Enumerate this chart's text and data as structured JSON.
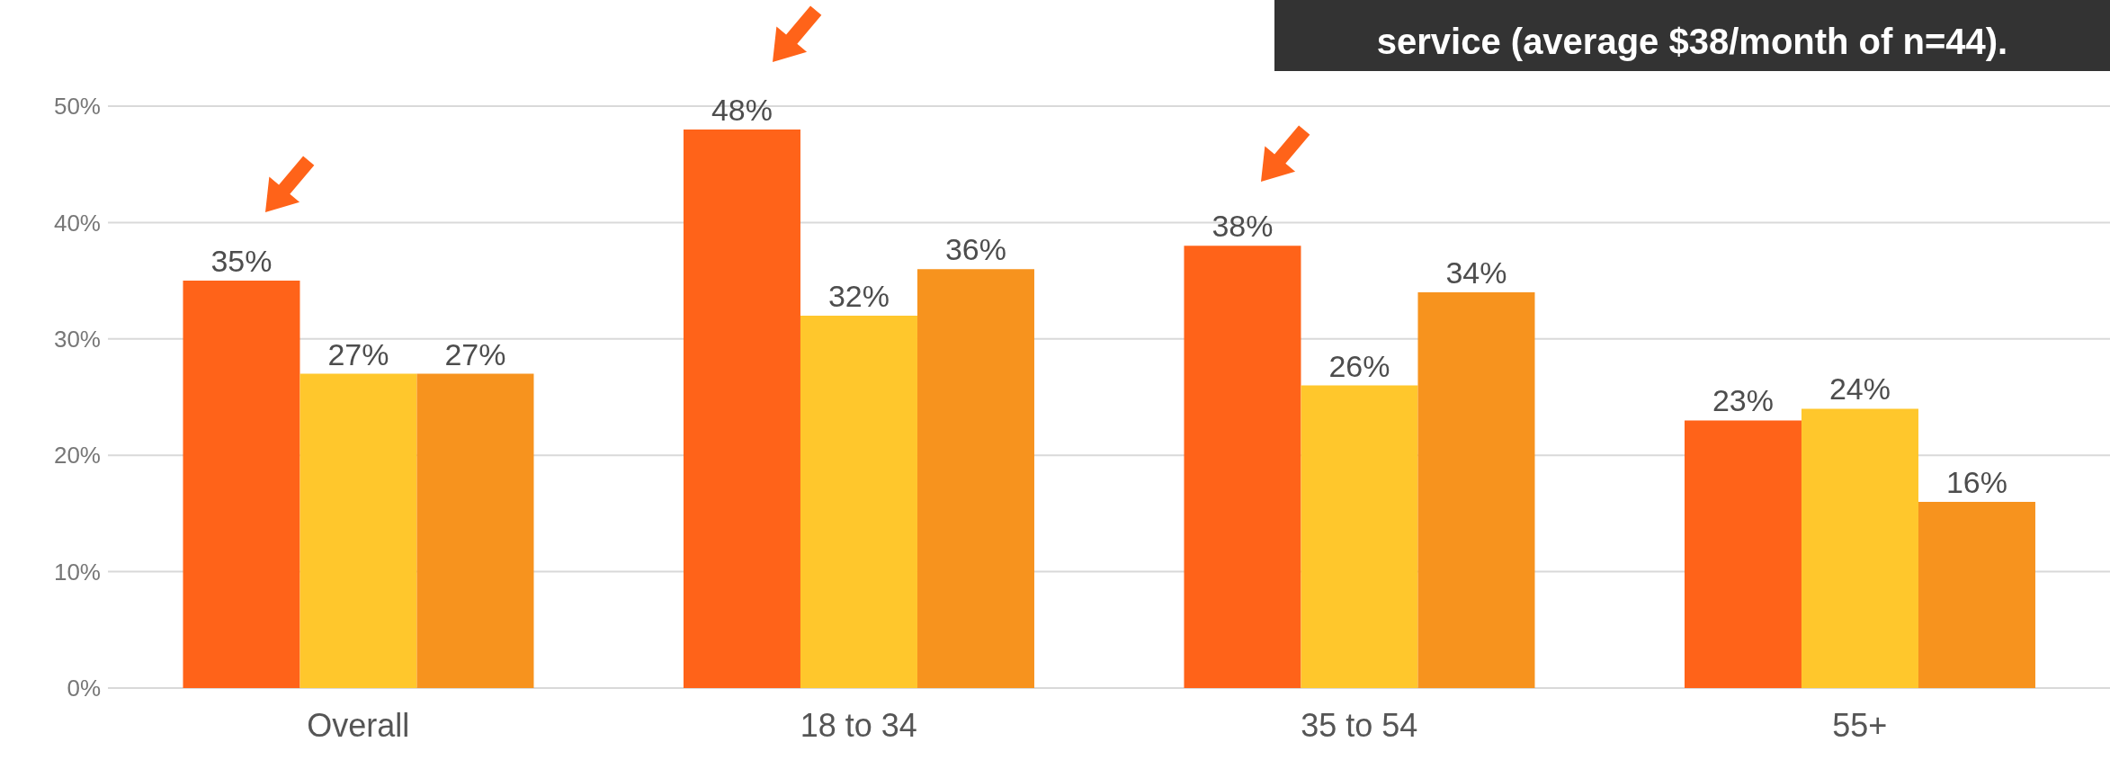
{
  "chart_data": {
    "type": "bar",
    "categories": [
      "Overall",
      "18 to 34",
      "35 to 54",
      "55+"
    ],
    "series": [
      {
        "color": "#ff6319",
        "values": [
          35,
          48,
          38,
          23
        ],
        "value_labels": [
          "35%",
          "48%",
          "38%",
          "23%"
        ]
      },
      {
        "color": "#ffc72c",
        "values": [
          27,
          32,
          26,
          24
        ],
        "value_labels": [
          "27%",
          "32%",
          "26%",
          "24%"
        ]
      },
      {
        "color": "#f7931e",
        "values": [
          27,
          36,
          34,
          16
        ],
        "value_labels": [
          "27%",
          "36%",
          "34%",
          "16%"
        ]
      }
    ],
    "ylim": [
      0,
      50
    ],
    "yticks": [
      {
        "value": 0,
        "label": "0%"
      },
      {
        "value": 10,
        "label": "10%"
      },
      {
        "value": 20,
        "label": "20%"
      },
      {
        "value": 30,
        "label": "30%"
      },
      {
        "value": 40,
        "label": "40%"
      },
      {
        "value": 50,
        "label": "50%"
      }
    ],
    "grid": "y",
    "legend": false,
    "annotations": [
      "service (average $38/month of n=44)."
    ]
  }
}
